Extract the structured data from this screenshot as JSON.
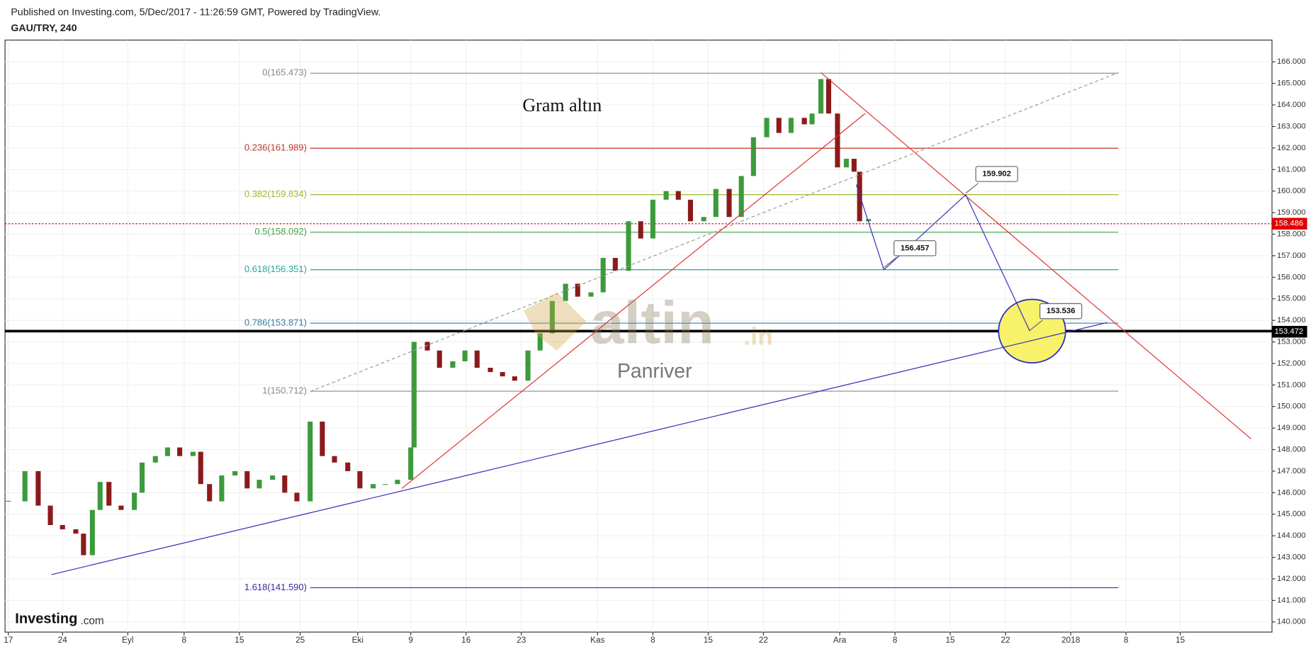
{
  "header": {
    "published": "Published on Investing.com, 5/Dec/2017 - 11:26:59 GMT, Powered by TradingView.",
    "symbol": "GAU/TRY, 240"
  },
  "logo": {
    "brand": "Investing",
    "suffix": ".com"
  },
  "chart_data": {
    "type": "candlestick",
    "title": "Gram altın",
    "watermark": {
      "brand": "altin",
      "suffix": ".in",
      "author": "Panriver"
    },
    "up_color": "#3c9a3c",
    "down_color": "#8b1a1a",
    "x": [
      0.3,
      1.8,
      3.0,
      4.1,
      5.2,
      6.4,
      7.1,
      7.9,
      8.6,
      9.4,
      10.5,
      11.7,
      12.4,
      13.6,
      14.7,
      15.8,
      17.0,
      17.7,
      18.5,
      19.6,
      20.8,
      21.9,
      23.0,
      24.2,
      25.3,
      26.4,
      27.6,
      28.7,
      29.8,
      31.0,
      32.1,
      33.3,
      34.4,
      35.5,
      36.7,
      37.0,
      38.2,
      39.3,
      40.5,
      41.6,
      42.7,
      43.9,
      45.0,
      46.1,
      47.3,
      48.4,
      49.5,
      50.7,
      51.8,
      53.0,
      54.1,
      55.2,
      56.4,
      57.5,
      58.6,
      59.8,
      60.9,
      62.0,
      63.2,
      64.3,
      65.5,
      66.6,
      67.7,
      68.9,
      70.0,
      71.1,
      72.3,
      73.0,
      73.8,
      74.5,
      75.3,
      76.1,
      76.8,
      77.3,
      78.1
    ],
    "values": [
      145.6,
      147.0,
      145.4,
      144.5,
      144.3,
      144.1,
      143.1,
      145.2,
      146.5,
      145.4,
      145.2,
      146.0,
      147.4,
      147.7,
      148.1,
      147.7,
      147.9,
      146.4,
      145.6,
      146.8,
      147.0,
      146.2,
      146.6,
      146.8,
      146.0,
      145.6,
      149.3,
      147.7,
      147.4,
      147.0,
      146.2,
      146.4,
      146.4,
      146.6,
      148.1,
      153.0,
      152.6,
      151.8,
      152.1,
      152.6,
      151.8,
      151.6,
      151.4,
      151.2,
      152.6,
      153.4,
      154.9,
      155.7,
      155.1,
      155.3,
      156.9,
      156.3,
      158.6,
      157.8,
      159.6,
      160.0,
      159.6,
      158.6,
      158.8,
      160.1,
      158.8,
      160.7,
      162.5,
      163.4,
      162.7,
      163.4,
      163.1,
      163.6,
      165.2,
      163.6,
      161.1,
      161.5,
      160.9,
      158.6,
      158.7
    ],
    "xlim": [
      0,
      114.6
    ],
    "xticks": [
      {
        "value": 0.3,
        "label": "17"
      },
      {
        "value": 5.2,
        "label": "24"
      },
      {
        "value": 11.1,
        "label": "Eyl"
      },
      {
        "value": 16.2,
        "label": "8"
      },
      {
        "value": 21.2,
        "label": "15"
      },
      {
        "value": 26.7,
        "label": "25"
      },
      {
        "value": 31.9,
        "label": "Eki"
      },
      {
        "value": 36.7,
        "label": "9"
      },
      {
        "value": 41.7,
        "label": "16"
      },
      {
        "value": 46.7,
        "label": "23"
      },
      {
        "value": 53.6,
        "label": "Kas"
      },
      {
        "value": 58.6,
        "label": "8"
      },
      {
        "value": 63.6,
        "label": "15"
      },
      {
        "value": 68.6,
        "label": "22"
      },
      {
        "value": 75.5,
        "label": "Ara"
      },
      {
        "value": 80.5,
        "label": "8"
      },
      {
        "value": 85.5,
        "label": "15"
      },
      {
        "value": 90.5,
        "label": "22"
      },
      {
        "value": 96.4,
        "label": "2018"
      },
      {
        "value": 101.4,
        "label": "8"
      },
      {
        "value": 106.3,
        "label": "15"
      }
    ],
    "ylim": [
      139.53,
      167.01
    ],
    "yticks": [
      {
        "value": 140,
        "label": "140.000"
      },
      {
        "value": 141,
        "label": "141.000"
      },
      {
        "value": 142,
        "label": "142.000"
      },
      {
        "value": 143,
        "label": "143.000"
      },
      {
        "value": 144,
        "label": "144.000"
      },
      {
        "value": 145,
        "label": "145.000"
      },
      {
        "value": 146,
        "label": "146.000"
      },
      {
        "value": 147,
        "label": "147.000"
      },
      {
        "value": 148,
        "label": "148.000"
      },
      {
        "value": 149,
        "label": "149.000"
      },
      {
        "value": 150,
        "label": "150.000"
      },
      {
        "value": 151,
        "label": "151.000"
      },
      {
        "value": 152,
        "label": "152.000"
      },
      {
        "value": 153,
        "label": "153.000"
      },
      {
        "value": 154,
        "label": "154.000"
      },
      {
        "value": 155,
        "label": "155.000"
      },
      {
        "value": 156,
        "label": "156.000"
      },
      {
        "value": 157,
        "label": "157.000"
      },
      {
        "value": 158,
        "label": "158.000"
      },
      {
        "value": 159,
        "label": "159.000"
      },
      {
        "value": 160,
        "label": "160.000"
      },
      {
        "value": 161,
        "label": "161.000"
      },
      {
        "value": 162,
        "label": "162.000"
      },
      {
        "value": 163,
        "label": "163.000"
      },
      {
        "value": 164,
        "label": "164.000"
      },
      {
        "value": 165,
        "label": "165.000"
      },
      {
        "value": 166,
        "label": "166.000"
      }
    ],
    "grid": true,
    "fib_levels": {
      "x": [
        27.6,
        100.7
      ],
      "levels": [
        {
          "label": "0(165.473)",
          "value": 165.473,
          "color": "#888888"
        },
        {
          "label": "0.236(161.989)",
          "value": 161.989,
          "color": "#c0392b"
        },
        {
          "label": "0.382(159.834)",
          "value": 159.834,
          "color": "#9ab82a"
        },
        {
          "label": "0.5(158.092)",
          "value": 158.092,
          "color": "#43a047"
        },
        {
          "label": "0.618(156.351)",
          "value": 156.351,
          "color": "#26a69a"
        },
        {
          "label": "0.786(153.871)",
          "value": 153.871,
          "color": "#3a7ca5"
        },
        {
          "label": "1(150.712)",
          "value": 150.712,
          "color": "#888888"
        },
        {
          "label": "1.618(141.590)",
          "value": 141.59,
          "color": "#3a2ba0"
        }
      ]
    },
    "trend_lines": [
      {
        "x": [
          4.2,
          99.7
        ],
        "y": [
          142.2,
          153.9
        ],
        "color": "#2b2bbf",
        "dashed": false
      },
      {
        "x": [
          35.9,
          77.8
        ],
        "y": [
          146.2,
          163.6
        ],
        "color": "#e03030",
        "dashed": false
      },
      {
        "x": [
          73.8,
          112.7
        ],
        "y": [
          165.5,
          148.5
        ],
        "color": "#e03030",
        "dashed": false
      },
      {
        "x": [
          27.6,
          100.7
        ],
        "y": [
          150.7,
          165.5
        ],
        "color": "#999999",
        "dashed": true
      },
      {
        "x": [
          77.0,
          79.5,
          86.9,
          92.7
        ],
        "y": [
          160.3,
          156.35,
          159.83,
          153.5
        ],
        "color": "#3030c0",
        "dashed": false
      }
    ],
    "horizontal_line": {
      "value": 153.5,
      "color": "#000000"
    },
    "target_circle": {
      "x": 92.9,
      "y": 153.5,
      "color": "#f7f26a"
    },
    "callouts": [
      {
        "x": 86.9,
        "value": 159.902,
        "label": "159.902"
      },
      {
        "x": 79.5,
        "value": 156.457,
        "label": "156.457"
      },
      {
        "x": 92.7,
        "value": 153.536,
        "label": "153.536"
      }
    ],
    "current_price": {
      "value": 158.486,
      "label": "158.486",
      "color": "#e00000"
    },
    "axis_tags": [
      {
        "value": 153.472,
        "label": "153.472",
        "color": "#000000"
      }
    ]
  }
}
